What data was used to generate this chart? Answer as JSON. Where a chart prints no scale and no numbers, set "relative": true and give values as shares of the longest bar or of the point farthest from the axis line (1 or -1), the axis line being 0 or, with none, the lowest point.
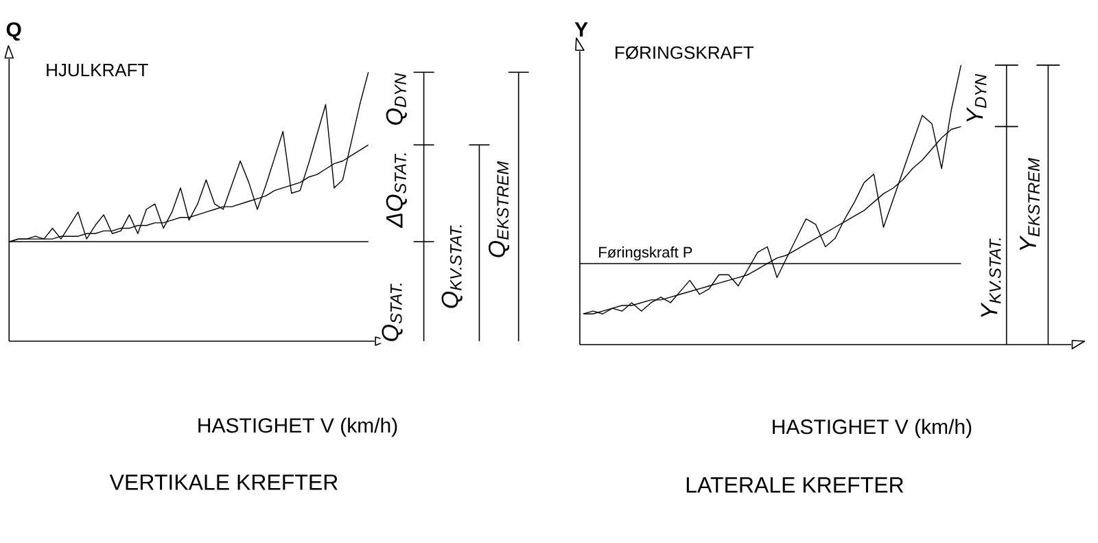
{
  "chart_data": [
    {
      "type": "line",
      "relative": true,
      "title": "VERTIKALE KREFTER",
      "xlabel": "HASTIGHET V (km/h)",
      "ylabel": "Q",
      "marker": "none",
      "line_style": "solid",
      "categories": [
        null,
        null,
        null,
        null,
        null,
        null,
        null,
        null,
        null,
        null,
        null,
        null,
        null,
        null,
        null,
        null,
        null,
        null,
        null,
        null,
        null,
        null,
        null,
        null,
        null,
        null,
        null,
        null,
        null,
        null,
        null,
        null,
        null,
        null,
        null,
        null,
        null,
        null,
        null,
        null,
        null,
        null,
        null
      ],
      "series": [
        {
          "color": "#000000",
          "values": [
            0.37,
            0.38,
            0.38,
            0.39,
            0.38,
            0.42,
            0.38,
            0.43,
            0.48,
            0.38,
            0.43,
            0.47,
            0.4,
            0.41,
            0.47,
            0.4,
            0.49,
            0.51,
            0.42,
            0.48,
            0.57,
            0.45,
            0.51,
            0.6,
            0.51,
            0.49,
            0.58,
            0.67,
            0.59,
            0.49,
            0.58,
            0.68,
            0.78,
            0.55,
            0.56,
            0.66,
            0.77,
            0.88,
            0.57,
            0.6,
            0.74,
            0.88,
            1.0
          ]
        },
        {
          "color": "#000000",
          "values": [
            0.37,
            0.38,
            0.38,
            0.38,
            0.38,
            0.38,
            0.39,
            0.39,
            0.39,
            0.4,
            0.4,
            0.41,
            0.41,
            0.42,
            0.42,
            0.43,
            0.43,
            0.44,
            0.44,
            0.45,
            0.46,
            0.46,
            0.47,
            0.48,
            0.49,
            0.5,
            0.5,
            0.51,
            0.52,
            0.53,
            0.54,
            0.56,
            0.57,
            0.58,
            0.59,
            0.61,
            0.62,
            0.64,
            0.66,
            0.67,
            0.69,
            0.71,
            0.73
          ]
        }
      ],
      "ref_lines": [
        {
          "axis": "y",
          "value": 0.37,
          "color": "#000000"
        }
      ],
      "annotations": [
        "HJULKRAFT",
        "Q$_{STAT.}$",
        "ΔQ$_{STAT.}$",
        "Q$_{DYN}$",
        "Q$_{KV.STAT.}$",
        "Q$_{EKSTREM}$"
      ]
    },
    {
      "type": "line",
      "relative": true,
      "title": "LATERALE KREFTER",
      "xlabel": "HASTIGHET V (km/h)",
      "ylabel": "Y",
      "marker": "none",
      "line_style": "solid",
      "categories": [
        null,
        null,
        null,
        null,
        null,
        null,
        null,
        null,
        null,
        null,
        null,
        null,
        null,
        null,
        null,
        null,
        null,
        null,
        null,
        null,
        null,
        null,
        null,
        null,
        null,
        null,
        null,
        null,
        null,
        null,
        null,
        null,
        null,
        null,
        null,
        null,
        null,
        null,
        null,
        null
      ],
      "series": [
        {
          "color": "#000000",
          "values": [
            0.11,
            0.12,
            0.11,
            0.13,
            0.12,
            0.15,
            0.12,
            0.15,
            0.17,
            0.15,
            0.19,
            0.23,
            0.18,
            0.2,
            0.25,
            0.25,
            0.21,
            0.27,
            0.33,
            0.35,
            0.24,
            0.31,
            0.38,
            0.45,
            0.43,
            0.35,
            0.38,
            0.45,
            0.51,
            0.58,
            0.61,
            0.42,
            0.52,
            0.62,
            0.72,
            0.82,
            0.79,
            0.63,
            0.84,
            1.0
          ]
        },
        {
          "color": "#000000",
          "values": [
            0.11,
            0.11,
            0.12,
            0.13,
            0.14,
            0.14,
            0.15,
            0.16,
            0.16,
            0.17,
            0.18,
            0.19,
            0.2,
            0.21,
            0.22,
            0.23,
            0.24,
            0.25,
            0.27,
            0.29,
            0.31,
            0.32,
            0.34,
            0.36,
            0.38,
            0.4,
            0.42,
            0.44,
            0.46,
            0.48,
            0.51,
            0.54,
            0.56,
            0.59,
            0.63,
            0.66,
            0.7,
            0.74,
            0.77,
            0.78
          ]
        }
      ],
      "ref_lines": [
        {
          "axis": "y",
          "value": 0.29,
          "color": "#000000",
          "label": "Føringskraft P"
        }
      ],
      "annotations": [
        "FØRINGSKRAFT",
        "Y$_{DYN}$",
        "Y$_{KV.STAT.}$",
        "Y$_{EKSTREM}$"
      ]
    }
  ]
}
